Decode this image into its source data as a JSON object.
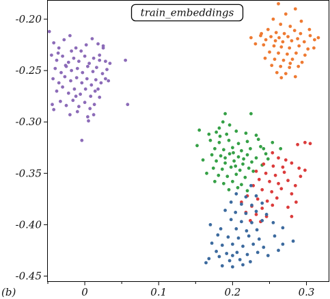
{
  "panel_label": "(b)",
  "chart_data": {
    "type": "scatter",
    "title": "train_embeddings",
    "xlabel": "",
    "ylabel": "",
    "xlim": [
      -0.05,
      0.33
    ],
    "ylim": [
      -0.455,
      -0.182
    ],
    "x_ticks": [
      0,
      0.1,
      0.2,
      0.3
    ],
    "x_tick_labels": [
      "0",
      "0.1",
      "0.2",
      "0.3"
    ],
    "y_ticks": [
      -0.2,
      -0.25,
      -0.3,
      -0.35,
      -0.4,
      -0.45
    ],
    "y_tick_labels": [
      "-0.20",
      "-0.25",
      "-0.30",
      "-0.35",
      "-0.40",
      "-0.45"
    ],
    "grid": false,
    "legend": "none",
    "series": [
      {
        "color": "#8c6bb8",
        "points": [
          [
            -0.048,
            -0.212
          ],
          [
            -0.042,
            -0.223
          ],
          [
            -0.035,
            -0.228
          ],
          [
            -0.028,
            -0.22
          ],
          [
            -0.02,
            -0.216
          ],
          [
            -0.012,
            -0.228
          ],
          [
            -0.005,
            -0.231
          ],
          [
            0.002,
            -0.225
          ],
          [
            0.01,
            -0.219
          ],
          [
            0.018,
            -0.224
          ],
          [
            0.025,
            -0.228
          ],
          [
            -0.045,
            -0.235
          ],
          [
            -0.038,
            -0.24
          ],
          [
            -0.03,
            -0.236
          ],
          [
            -0.022,
            -0.242
          ],
          [
            -0.015,
            -0.238
          ],
          [
            -0.008,
            -0.241
          ],
          [
            0.0,
            -0.236
          ],
          [
            0.006,
            -0.243
          ],
          [
            0.012,
            -0.238
          ],
          [
            0.02,
            -0.235
          ],
          [
            0.028,
            -0.241
          ],
          [
            -0.04,
            -0.248
          ],
          [
            -0.032,
            -0.252
          ],
          [
            -0.025,
            -0.246
          ],
          [
            -0.018,
            -0.25
          ],
          [
            -0.01,
            -0.248
          ],
          [
            -0.003,
            -0.252
          ],
          [
            0.004,
            -0.246
          ],
          [
            0.011,
            -0.251
          ],
          [
            0.016,
            -0.247
          ],
          [
            0.024,
            -0.253
          ],
          [
            0.03,
            -0.249
          ],
          [
            -0.043,
            -0.258
          ],
          [
            -0.035,
            -0.262
          ],
          [
            -0.027,
            -0.256
          ],
          [
            -0.019,
            -0.26
          ],
          [
            -0.011,
            -0.257
          ],
          [
            -0.004,
            -0.262
          ],
          [
            0.003,
            -0.258
          ],
          [
            0.009,
            -0.264
          ],
          [
            0.015,
            -0.259
          ],
          [
            0.022,
            -0.262
          ],
          [
            0.028,
            -0.258
          ],
          [
            -0.038,
            -0.27
          ],
          [
            -0.03,
            -0.266
          ],
          [
            -0.022,
            -0.272
          ],
          [
            -0.014,
            -0.268
          ],
          [
            -0.006,
            -0.273
          ],
          [
            0.001,
            -0.268
          ],
          [
            0.008,
            -0.275
          ],
          [
            0.014,
            -0.27
          ],
          [
            0.02,
            -0.276
          ],
          [
            -0.033,
            -0.28
          ],
          [
            -0.025,
            -0.284
          ],
          [
            -0.016,
            -0.279
          ],
          [
            -0.008,
            -0.285
          ],
          [
            0.0,
            -0.281
          ],
          [
            0.007,
            -0.287
          ],
          [
            0.013,
            -0.283
          ],
          [
            -0.044,
            -0.283
          ],
          [
            -0.042,
            -0.288
          ],
          [
            -0.02,
            -0.293
          ],
          [
            -0.01,
            -0.29
          ],
          [
            0.004,
            -0.295
          ],
          [
            0.012,
            -0.293
          ],
          [
            0.025,
            -0.226
          ],
          [
            0.034,
            -0.243
          ],
          [
            0.032,
            -0.26
          ],
          [
            0.055,
            -0.24
          ],
          [
            0.058,
            -0.283
          ],
          [
            -0.018,
            -0.231
          ],
          [
            -0.026,
            -0.245
          ],
          [
            0.005,
            -0.299
          ],
          [
            -0.004,
            -0.318
          ],
          [
            -0.036,
            -0.233
          ],
          [
            0.018,
            -0.268
          ],
          [
            -0.012,
            -0.275
          ],
          [
            0.02,
            -0.24
          ]
        ]
      },
      {
        "color": "#ee7a32",
        "points": [
          [
            0.262,
            -0.185
          ],
          [
            0.285,
            -0.19
          ],
          [
            0.272,
            -0.195
          ],
          [
            0.255,
            -0.2
          ],
          [
            0.293,
            -0.202
          ],
          [
            0.265,
            -0.205
          ],
          [
            0.278,
            -0.207
          ],
          [
            0.248,
            -0.21
          ],
          [
            0.284,
            -0.211
          ],
          [
            0.259,
            -0.213
          ],
          [
            0.27,
            -0.214
          ],
          [
            0.292,
            -0.214
          ],
          [
            0.238,
            -0.216
          ],
          [
            0.252,
            -0.217
          ],
          [
            0.263,
            -0.218
          ],
          [
            0.275,
            -0.217
          ],
          [
            0.288,
            -0.219
          ],
          [
            0.305,
            -0.216
          ],
          [
            0.316,
            -0.218
          ],
          [
            0.245,
            -0.22
          ],
          [
            0.258,
            -0.221
          ],
          [
            0.268,
            -0.222
          ],
          [
            0.28,
            -0.221
          ],
          [
            0.297,
            -0.222
          ],
          [
            0.311,
            -0.22
          ],
          [
            0.225,
            -0.218
          ],
          [
            0.242,
            -0.225
          ],
          [
            0.256,
            -0.226
          ],
          [
            0.266,
            -0.227
          ],
          [
            0.277,
            -0.228
          ],
          [
            0.29,
            -0.226
          ],
          [
            0.302,
            -0.229
          ],
          [
            0.25,
            -0.232
          ],
          [
            0.262,
            -0.233
          ],
          [
            0.274,
            -0.234
          ],
          [
            0.286,
            -0.233
          ],
          [
            0.298,
            -0.235
          ],
          [
            0.244,
            -0.238
          ],
          [
            0.257,
            -0.239
          ],
          [
            0.269,
            -0.24
          ],
          [
            0.281,
            -0.239
          ],
          [
            0.294,
            -0.242
          ],
          [
            0.253,
            -0.245
          ],
          [
            0.265,
            -0.246
          ],
          [
            0.277,
            -0.247
          ],
          [
            0.289,
            -0.246
          ],
          [
            0.26,
            -0.252
          ],
          [
            0.272,
            -0.253
          ],
          [
            0.285,
            -0.256
          ],
          [
            0.266,
            -0.257
          ],
          [
            0.231,
            -0.224
          ],
          [
            0.239,
            -0.214
          ],
          [
            0.304,
            -0.21
          ],
          [
            0.31,
            -0.228
          ],
          [
            0.278,
            -0.243
          ]
        ]
      },
      {
        "color": "#35a046",
        "points": [
          [
            0.19,
            -0.292
          ],
          [
            0.187,
            -0.3
          ],
          [
            0.196,
            -0.303
          ],
          [
            0.225,
            -0.292
          ],
          [
            0.182,
            -0.306
          ],
          [
            0.155,
            -0.308
          ],
          [
            0.168,
            -0.312
          ],
          [
            0.178,
            -0.31
          ],
          [
            0.192,
            -0.312
          ],
          [
            0.205,
            -0.309
          ],
          [
            0.218,
            -0.311
          ],
          [
            0.232,
            -0.313
          ],
          [
            0.17,
            -0.318
          ],
          [
            0.182,
            -0.32
          ],
          [
            0.195,
            -0.318
          ],
          [
            0.208,
            -0.321
          ],
          [
            0.22,
            -0.319
          ],
          [
            0.235,
            -0.317
          ],
          [
            0.152,
            -0.323
          ],
          [
            0.176,
            -0.326
          ],
          [
            0.188,
            -0.327
          ],
          [
            0.2,
            -0.325
          ],
          [
            0.212,
            -0.328
          ],
          [
            0.224,
            -0.326
          ],
          [
            0.238,
            -0.324
          ],
          [
            0.172,
            -0.332
          ],
          [
            0.184,
            -0.333
          ],
          [
            0.196,
            -0.331
          ],
          [
            0.208,
            -0.334
          ],
          [
            0.22,
            -0.332
          ],
          [
            0.232,
            -0.335
          ],
          [
            0.245,
            -0.331
          ],
          [
            0.178,
            -0.338
          ],
          [
            0.19,
            -0.34
          ],
          [
            0.202,
            -0.338
          ],
          [
            0.214,
            -0.341
          ],
          [
            0.226,
            -0.339
          ],
          [
            0.24,
            -0.342
          ],
          [
            0.174,
            -0.345
          ],
          [
            0.186,
            -0.346
          ],
          [
            0.198,
            -0.344
          ],
          [
            0.21,
            -0.347
          ],
          [
            0.222,
            -0.345
          ],
          [
            0.181,
            -0.352
          ],
          [
            0.193,
            -0.353
          ],
          [
            0.205,
            -0.351
          ],
          [
            0.217,
            -0.354
          ],
          [
            0.176,
            -0.358
          ],
          [
            0.188,
            -0.36
          ],
          [
            0.2,
            -0.358
          ],
          [
            0.212,
            -0.361
          ],
          [
            0.195,
            -0.366
          ],
          [
            0.207,
            -0.364
          ],
          [
            0.22,
            -0.367
          ],
          [
            0.254,
            -0.32
          ],
          [
            0.265,
            -0.326
          ],
          [
            0.248,
            -0.336
          ],
          [
            0.16,
            -0.337
          ],
          [
            0.165,
            -0.35
          ],
          [
            0.183,
            -0.314
          ],
          [
            0.201,
            -0.33
          ],
          [
            0.215,
            -0.336
          ],
          [
            0.228,
            -0.348
          ],
          [
            0.19,
            -0.335
          ],
          [
            0.204,
            -0.343
          ],
          [
            0.242,
            -0.326
          ]
        ]
      },
      {
        "color": "#db3b3b",
        "points": [
          [
            0.288,
            -0.322
          ],
          [
            0.298,
            -0.32
          ],
          [
            0.305,
            -0.321
          ],
          [
            0.254,
            -0.33
          ],
          [
            0.262,
            -0.335
          ],
          [
            0.272,
            -0.337
          ],
          [
            0.242,
            -0.341
          ],
          [
            0.255,
            -0.343
          ],
          [
            0.268,
            -0.344
          ],
          [
            0.28,
            -0.34
          ],
          [
            0.29,
            -0.345
          ],
          [
            0.232,
            -0.348
          ],
          [
            0.245,
            -0.35
          ],
          [
            0.258,
            -0.352
          ],
          [
            0.27,
            -0.349
          ],
          [
            0.292,
            -0.353
          ],
          [
            0.236,
            -0.356
          ],
          [
            0.25,
            -0.358
          ],
          [
            0.262,
            -0.36
          ],
          [
            0.275,
            -0.357
          ],
          [
            0.285,
            -0.362
          ],
          [
            0.228,
            -0.362
          ],
          [
            0.24,
            -0.366
          ],
          [
            0.253,
            -0.368
          ],
          [
            0.266,
            -0.365
          ],
          [
            0.28,
            -0.37
          ],
          [
            0.22,
            -0.372
          ],
          [
            0.234,
            -0.375
          ],
          [
            0.247,
            -0.377
          ],
          [
            0.26,
            -0.374
          ],
          [
            0.212,
            -0.378
          ],
          [
            0.226,
            -0.382
          ],
          [
            0.24,
            -0.384
          ],
          [
            0.254,
            -0.381
          ],
          [
            0.218,
            -0.388
          ],
          [
            0.232,
            -0.39
          ],
          [
            0.246,
            -0.392
          ],
          [
            0.224,
            -0.396
          ],
          [
            0.238,
            -0.397
          ],
          [
            0.28,
            -0.392
          ],
          [
            0.286,
            -0.378
          ],
          [
            0.298,
            -0.347
          ],
          [
            0.275,
            -0.383
          ]
        ]
      },
      {
        "color": "#3c6a9e",
        "points": [
          [
            0.225,
            -0.362
          ],
          [
            0.205,
            -0.37
          ],
          [
            0.218,
            -0.373
          ],
          [
            0.232,
            -0.372
          ],
          [
            0.198,
            -0.378
          ],
          [
            0.212,
            -0.38
          ],
          [
            0.226,
            -0.381
          ],
          [
            0.24,
            -0.379
          ],
          [
            0.19,
            -0.386
          ],
          [
            0.204,
            -0.388
          ],
          [
            0.218,
            -0.389
          ],
          [
            0.232,
            -0.387
          ],
          [
            0.246,
            -0.39
          ],
          [
            0.198,
            -0.395
          ],
          [
            0.212,
            -0.397
          ],
          [
            0.226,
            -0.398
          ],
          [
            0.24,
            -0.396
          ],
          [
            0.255,
            -0.398
          ],
          [
            0.205,
            -0.404
          ],
          [
            0.219,
            -0.406
          ],
          [
            0.233,
            -0.405
          ],
          [
            0.268,
            -0.403
          ],
          [
            0.17,
            -0.4
          ],
          [
            0.184,
            -0.404
          ],
          [
            0.18,
            -0.41
          ],
          [
            0.194,
            -0.412
          ],
          [
            0.208,
            -0.413
          ],
          [
            0.222,
            -0.411
          ],
          [
            0.236,
            -0.414
          ],
          [
            0.172,
            -0.418
          ],
          [
            0.186,
            -0.42
          ],
          [
            0.2,
            -0.419
          ],
          [
            0.214,
            -0.421
          ],
          [
            0.228,
            -0.419
          ],
          [
            0.242,
            -0.422
          ],
          [
            0.178,
            -0.426
          ],
          [
            0.192,
            -0.428
          ],
          [
            0.206,
            -0.427
          ],
          [
            0.22,
            -0.429
          ],
          [
            0.234,
            -0.427
          ],
          [
            0.248,
            -0.43
          ],
          [
            0.168,
            -0.433
          ],
          [
            0.182,
            -0.431
          ],
          [
            0.196,
            -0.435
          ],
          [
            0.21,
            -0.434
          ],
          [
            0.224,
            -0.436
          ],
          [
            0.164,
            -0.437
          ],
          [
            0.186,
            -0.44
          ],
          [
            0.2,
            -0.441
          ],
          [
            0.214,
            -0.439
          ],
          [
            0.268,
            -0.419
          ],
          [
            0.262,
            -0.425
          ],
          [
            0.282,
            -0.416
          ],
          [
            0.257,
            -0.411
          ],
          [
            0.2,
            -0.43
          ]
        ]
      }
    ]
  }
}
